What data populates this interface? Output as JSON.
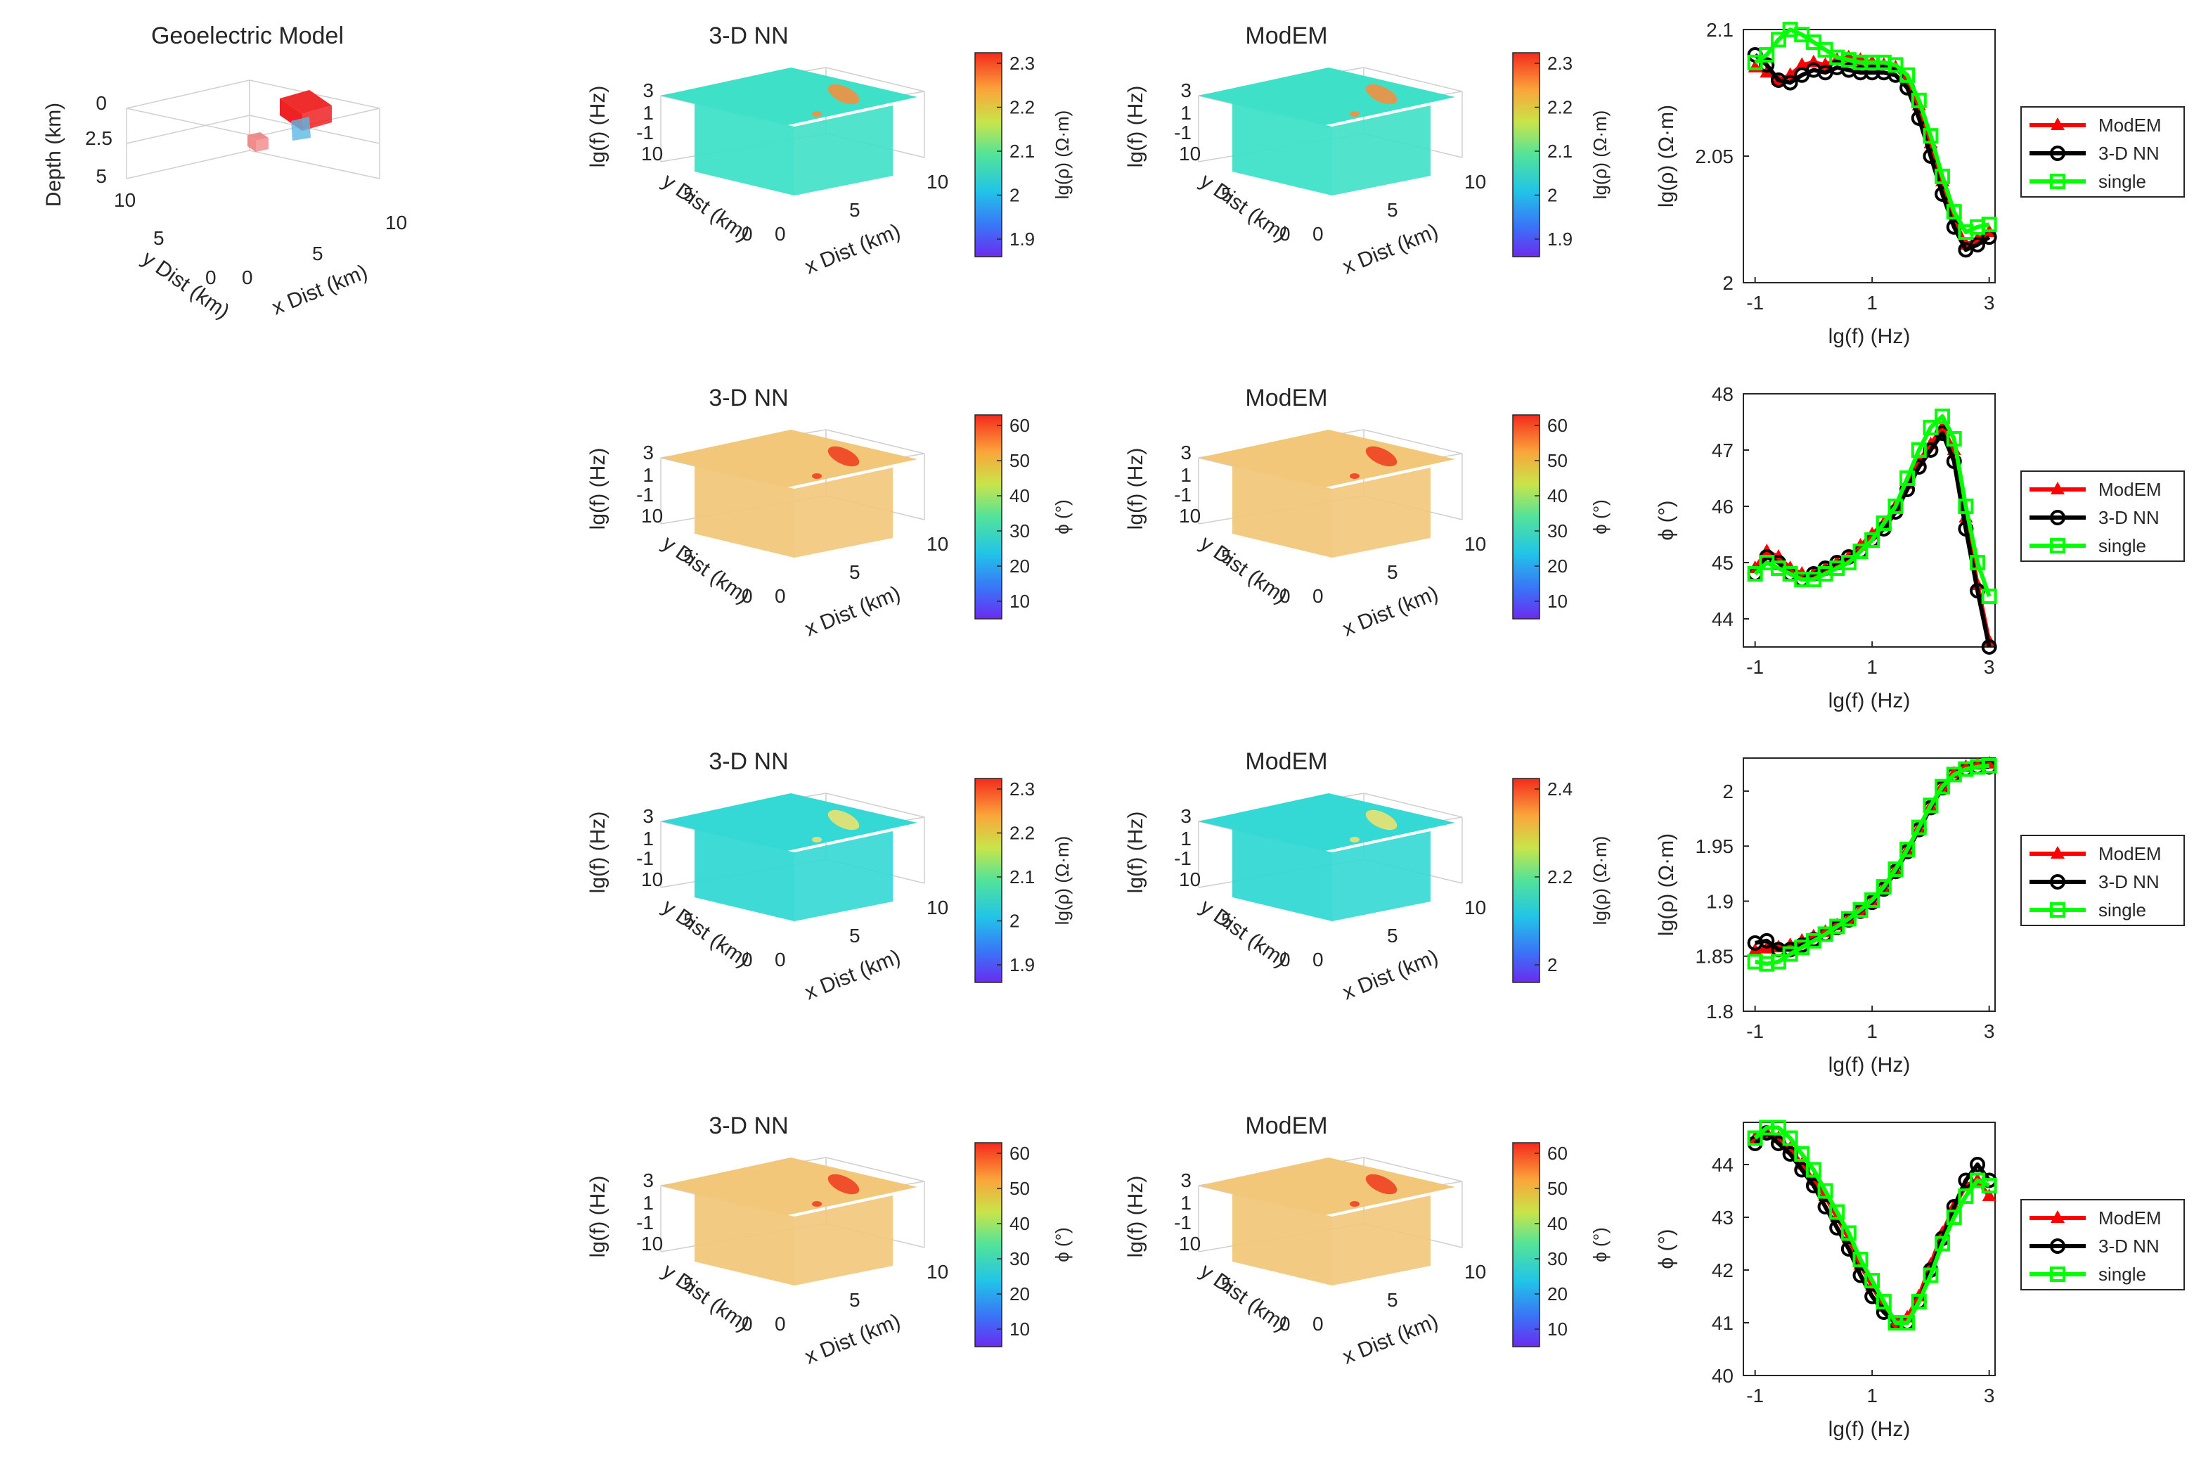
{
  "figure": {
    "geo_model": {
      "title": "Geoelectric Model",
      "zlabel": "Depth (km)",
      "ylabel": "y Dist (km)",
      "xlabel": "x Dist (km)",
      "z_ticks": [
        "0",
        "2.5",
        "5"
      ],
      "y_ticks": [
        "10",
        "5",
        "0"
      ],
      "x_ticks": [
        "0",
        "5",
        "10"
      ],
      "colors": {
        "conductor": "#ee2222",
        "secondary": "#5bb8e6",
        "small": "#f08080"
      }
    },
    "cube_axes": {
      "zlabel": "lg(f) (Hz)",
      "ylabel": "y Dist (km)",
      "xlabel": "x Dist (km)",
      "z_ticks": [
        "3",
        "1",
        "-1"
      ],
      "y_ticks": [
        "10",
        "5",
        "0"
      ],
      "x_ticks": [
        "0",
        "5",
        "10"
      ]
    },
    "rows": [
      {
        "nn_title": "3-D NN",
        "modem_title": "ModEM",
        "cb_label": "lg(ρ) (Ω·m)",
        "cb_ticks_nn": [
          "2.3",
          "2.2",
          "2.1",
          "2",
          "1.9"
        ],
        "cb_ticks_modem": [
          "2.3",
          "2.2",
          "2.1",
          "2",
          "1.9"
        ],
        "slice_color": "#3fe0c8",
        "anomaly_color": "#ff8a3a",
        "legend": [
          "ModEM",
          "3-D NN",
          "single"
        ]
      },
      {
        "nn_title": "3-D NN",
        "modem_title": "ModEM",
        "cb_label": "ϕ (°)",
        "cb_ticks_nn": [
          "60",
          "50",
          "40",
          "30",
          "20",
          "10"
        ],
        "cb_ticks_modem": [
          "60",
          "50",
          "40",
          "30",
          "20",
          "10"
        ],
        "slice_color": "#f2c77a",
        "anomaly_color": "#f03a1e",
        "legend": [
          "ModEM",
          "3-D NN",
          "single"
        ]
      },
      {
        "nn_title": "3-D NN",
        "modem_title": "ModEM",
        "cb_label": "lg(ρ) (Ω·m)",
        "cb_ticks_nn": [
          "2.3",
          "2.2",
          "2.1",
          "2",
          "1.9"
        ],
        "cb_ticks_modem": [
          "2.4",
          "2.2",
          "2"
        ],
        "slice_color": "#34d8d4",
        "anomaly_color": "#f7e36a",
        "legend": [
          "ModEM",
          "3-D NN",
          "single"
        ]
      },
      {
        "nn_title": "3-D NN",
        "modem_title": "ModEM",
        "cb_label": "ϕ (°)",
        "cb_ticks_nn": [
          "60",
          "50",
          "40",
          "30",
          "20",
          "10"
        ],
        "cb_ticks_modem": [
          "60",
          "50",
          "40",
          "30",
          "20",
          "10"
        ],
        "slice_color": "#f2c77a",
        "anomaly_color": "#f03a1e",
        "legend": [
          "ModEM",
          "3-D NN",
          "single"
        ]
      }
    ],
    "colors": {
      "modem": "#ff0000",
      "nn": "#000000",
      "single": "#00ff00",
      "axis": "#262626"
    }
  },
  "chart_data": [
    {
      "type": "line",
      "xlabel": "lg(f) (Hz)",
      "ylabel": "lg(ρ) (Ω·m)",
      "xlim": [
        -1.2,
        3.1
      ],
      "ylim": [
        2.0,
        2.1
      ],
      "x_ticks": [
        -1,
        1,
        3
      ],
      "x_tick_labels": [
        "-1",
        "1",
        "3"
      ],
      "y_ticks": [
        2.0,
        2.05,
        2.1
      ],
      "y_tick_labels": [
        "2",
        "2.05",
        "2.1"
      ],
      "x": [
        -1.0,
        -0.8,
        -0.6,
        -0.4,
        -0.2,
        0.0,
        0.2,
        0.4,
        0.6,
        0.8,
        1.0,
        1.2,
        1.4,
        1.6,
        1.8,
        2.0,
        2.2,
        2.4,
        2.6,
        2.8,
        3.0
      ],
      "series": [
        {
          "name": "ModEM",
          "values": [
            2.085,
            2.083,
            2.08,
            2.082,
            2.086,
            2.087,
            2.086,
            2.088,
            2.089,
            2.088,
            2.087,
            2.086,
            2.085,
            2.08,
            2.07,
            2.055,
            2.04,
            2.025,
            2.015,
            2.017,
            2.02
          ]
        },
        {
          "name": "3-D NN",
          "values": [
            2.09,
            2.086,
            2.08,
            2.079,
            2.082,
            2.084,
            2.083,
            2.085,
            2.084,
            2.083,
            2.083,
            2.083,
            2.082,
            2.077,
            2.065,
            2.05,
            2.035,
            2.022,
            2.013,
            2.015,
            2.018
          ]
        },
        {
          "name": "single",
          "values": [
            2.087,
            2.09,
            2.096,
            2.1,
            2.098,
            2.095,
            2.092,
            2.089,
            2.088,
            2.087,
            2.087,
            2.087,
            2.086,
            2.082,
            2.072,
            2.058,
            2.042,
            2.028,
            2.02,
            2.022,
            2.023
          ]
        }
      ],
      "legend": "outside-right"
    },
    {
      "type": "line",
      "xlabel": "lg(f) (Hz)",
      "ylabel": "ϕ (°)",
      "xlim": [
        -1.2,
        3.1
      ],
      "ylim": [
        43.5,
        48.0
      ],
      "x_ticks": [
        -1,
        1,
        3
      ],
      "x_tick_labels": [
        "-1",
        "1",
        "3"
      ],
      "y_ticks": [
        44,
        45,
        46,
        47,
        48
      ],
      "y_tick_labels": [
        "44",
        "45",
        "46",
        "47",
        "48"
      ],
      "x": [
        -1.0,
        -0.8,
        -0.6,
        -0.4,
        -0.2,
        0.0,
        0.2,
        0.4,
        0.6,
        0.8,
        1.0,
        1.2,
        1.4,
        1.6,
        1.8,
        2.0,
        2.2,
        2.4,
        2.6,
        2.8,
        3.0
      ],
      "series": [
        {
          "name": "ModEM",
          "values": [
            44.9,
            45.2,
            45.1,
            44.9,
            44.8,
            44.8,
            44.9,
            45.0,
            45.1,
            45.3,
            45.5,
            45.7,
            46.0,
            46.4,
            46.8,
            47.1,
            47.4,
            47.0,
            45.8,
            44.6,
            43.6
          ]
        },
        {
          "name": "3-D NN",
          "values": [
            44.8,
            45.1,
            45.0,
            44.8,
            44.7,
            44.8,
            44.9,
            45.0,
            45.1,
            45.2,
            45.4,
            45.6,
            45.9,
            46.3,
            46.7,
            47.0,
            47.3,
            46.8,
            45.6,
            44.5,
            43.5
          ]
        },
        {
          "name": "single",
          "values": [
            44.8,
            45.0,
            44.9,
            44.8,
            44.7,
            44.7,
            44.8,
            44.9,
            45.0,
            45.2,
            45.4,
            45.7,
            46.0,
            46.5,
            47.0,
            47.4,
            47.6,
            47.2,
            46.0,
            45.0,
            44.4
          ]
        }
      ],
      "legend": "outside-right"
    },
    {
      "type": "line",
      "xlabel": "lg(f) (Hz)",
      "ylabel": "lg(ρ) (Ω·m)",
      "xlim": [
        -1.2,
        3.1
      ],
      "ylim": [
        1.8,
        2.03
      ],
      "x_ticks": [
        -1,
        1,
        3
      ],
      "x_tick_labels": [
        "-1",
        "1",
        "3"
      ],
      "y_ticks": [
        1.8,
        1.85,
        1.9,
        1.95,
        2.0
      ],
      "y_tick_labels": [
        "1.8",
        "1.85",
        "1.9",
        "1.95",
        "2"
      ],
      "x": [
        -1.0,
        -0.8,
        -0.6,
        -0.4,
        -0.2,
        0.0,
        0.2,
        0.4,
        0.6,
        0.8,
        1.0,
        1.2,
        1.4,
        1.6,
        1.8,
        2.0,
        2.2,
        2.4,
        2.6,
        2.8,
        3.0
      ],
      "series": [
        {
          "name": "ModEM",
          "values": [
            1.855,
            1.857,
            1.858,
            1.86,
            1.864,
            1.868,
            1.872,
            1.878,
            1.884,
            1.892,
            1.9,
            1.912,
            1.928,
            1.946,
            1.966,
            1.986,
            2.004,
            2.016,
            2.022,
            2.024,
            2.025
          ]
        },
        {
          "name": "3-D NN",
          "values": [
            1.862,
            1.864,
            1.856,
            1.856,
            1.86,
            1.865,
            1.87,
            1.876,
            1.883,
            1.891,
            1.899,
            1.911,
            1.927,
            1.945,
            1.965,
            1.985,
            2.003,
            2.015,
            2.02,
            2.022,
            2.022
          ]
        },
        {
          "name": "single",
          "values": [
            1.845,
            1.843,
            1.845,
            1.852,
            1.858,
            1.864,
            1.87,
            1.877,
            1.884,
            1.892,
            1.901,
            1.913,
            1.929,
            1.947,
            1.967,
            1.987,
            2.004,
            2.015,
            2.02,
            2.022,
            2.023
          ]
        }
      ],
      "legend": "outside-right"
    },
    {
      "type": "line",
      "xlabel": "lg(f) (Hz)",
      "ylabel": "ϕ (°)",
      "xlim": [
        -1.2,
        3.1
      ],
      "ylim": [
        40.0,
        44.8
      ],
      "x_ticks": [
        -1,
        1,
        3
      ],
      "x_tick_labels": [
        "-1",
        "1",
        "3"
      ],
      "y_ticks": [
        40,
        41,
        42,
        43,
        44
      ],
      "y_tick_labels": [
        "40",
        "41",
        "42",
        "43",
        "44"
      ],
      "x": [
        -1.0,
        -0.8,
        -0.6,
        -0.4,
        -0.2,
        0.0,
        0.2,
        0.4,
        0.6,
        0.8,
        1.0,
        1.2,
        1.4,
        1.6,
        1.8,
        2.0,
        2.2,
        2.4,
        2.6,
        2.8,
        3.0
      ],
      "series": [
        {
          "name": "ModEM",
          "values": [
            44.5,
            44.6,
            44.5,
            44.3,
            44.0,
            43.7,
            43.4,
            43.0,
            42.6,
            42.1,
            41.7,
            41.3,
            41.0,
            41.1,
            41.5,
            42.1,
            42.7,
            43.2,
            43.6,
            43.7,
            43.4
          ]
        },
        {
          "name": "3-D NN",
          "values": [
            44.4,
            44.6,
            44.4,
            44.2,
            43.9,
            43.6,
            43.2,
            42.8,
            42.4,
            41.9,
            41.5,
            41.2,
            41.0,
            41.0,
            41.4,
            42.0,
            42.6,
            43.2,
            43.7,
            44.0,
            43.7
          ]
        },
        {
          "name": "single",
          "values": [
            44.5,
            44.7,
            44.7,
            44.5,
            44.2,
            43.9,
            43.5,
            43.1,
            42.7,
            42.2,
            41.8,
            41.4,
            41.0,
            41.0,
            41.4,
            41.9,
            42.5,
            43.0,
            43.4,
            43.7,
            43.6
          ]
        }
      ],
      "legend": "outside-right"
    }
  ]
}
